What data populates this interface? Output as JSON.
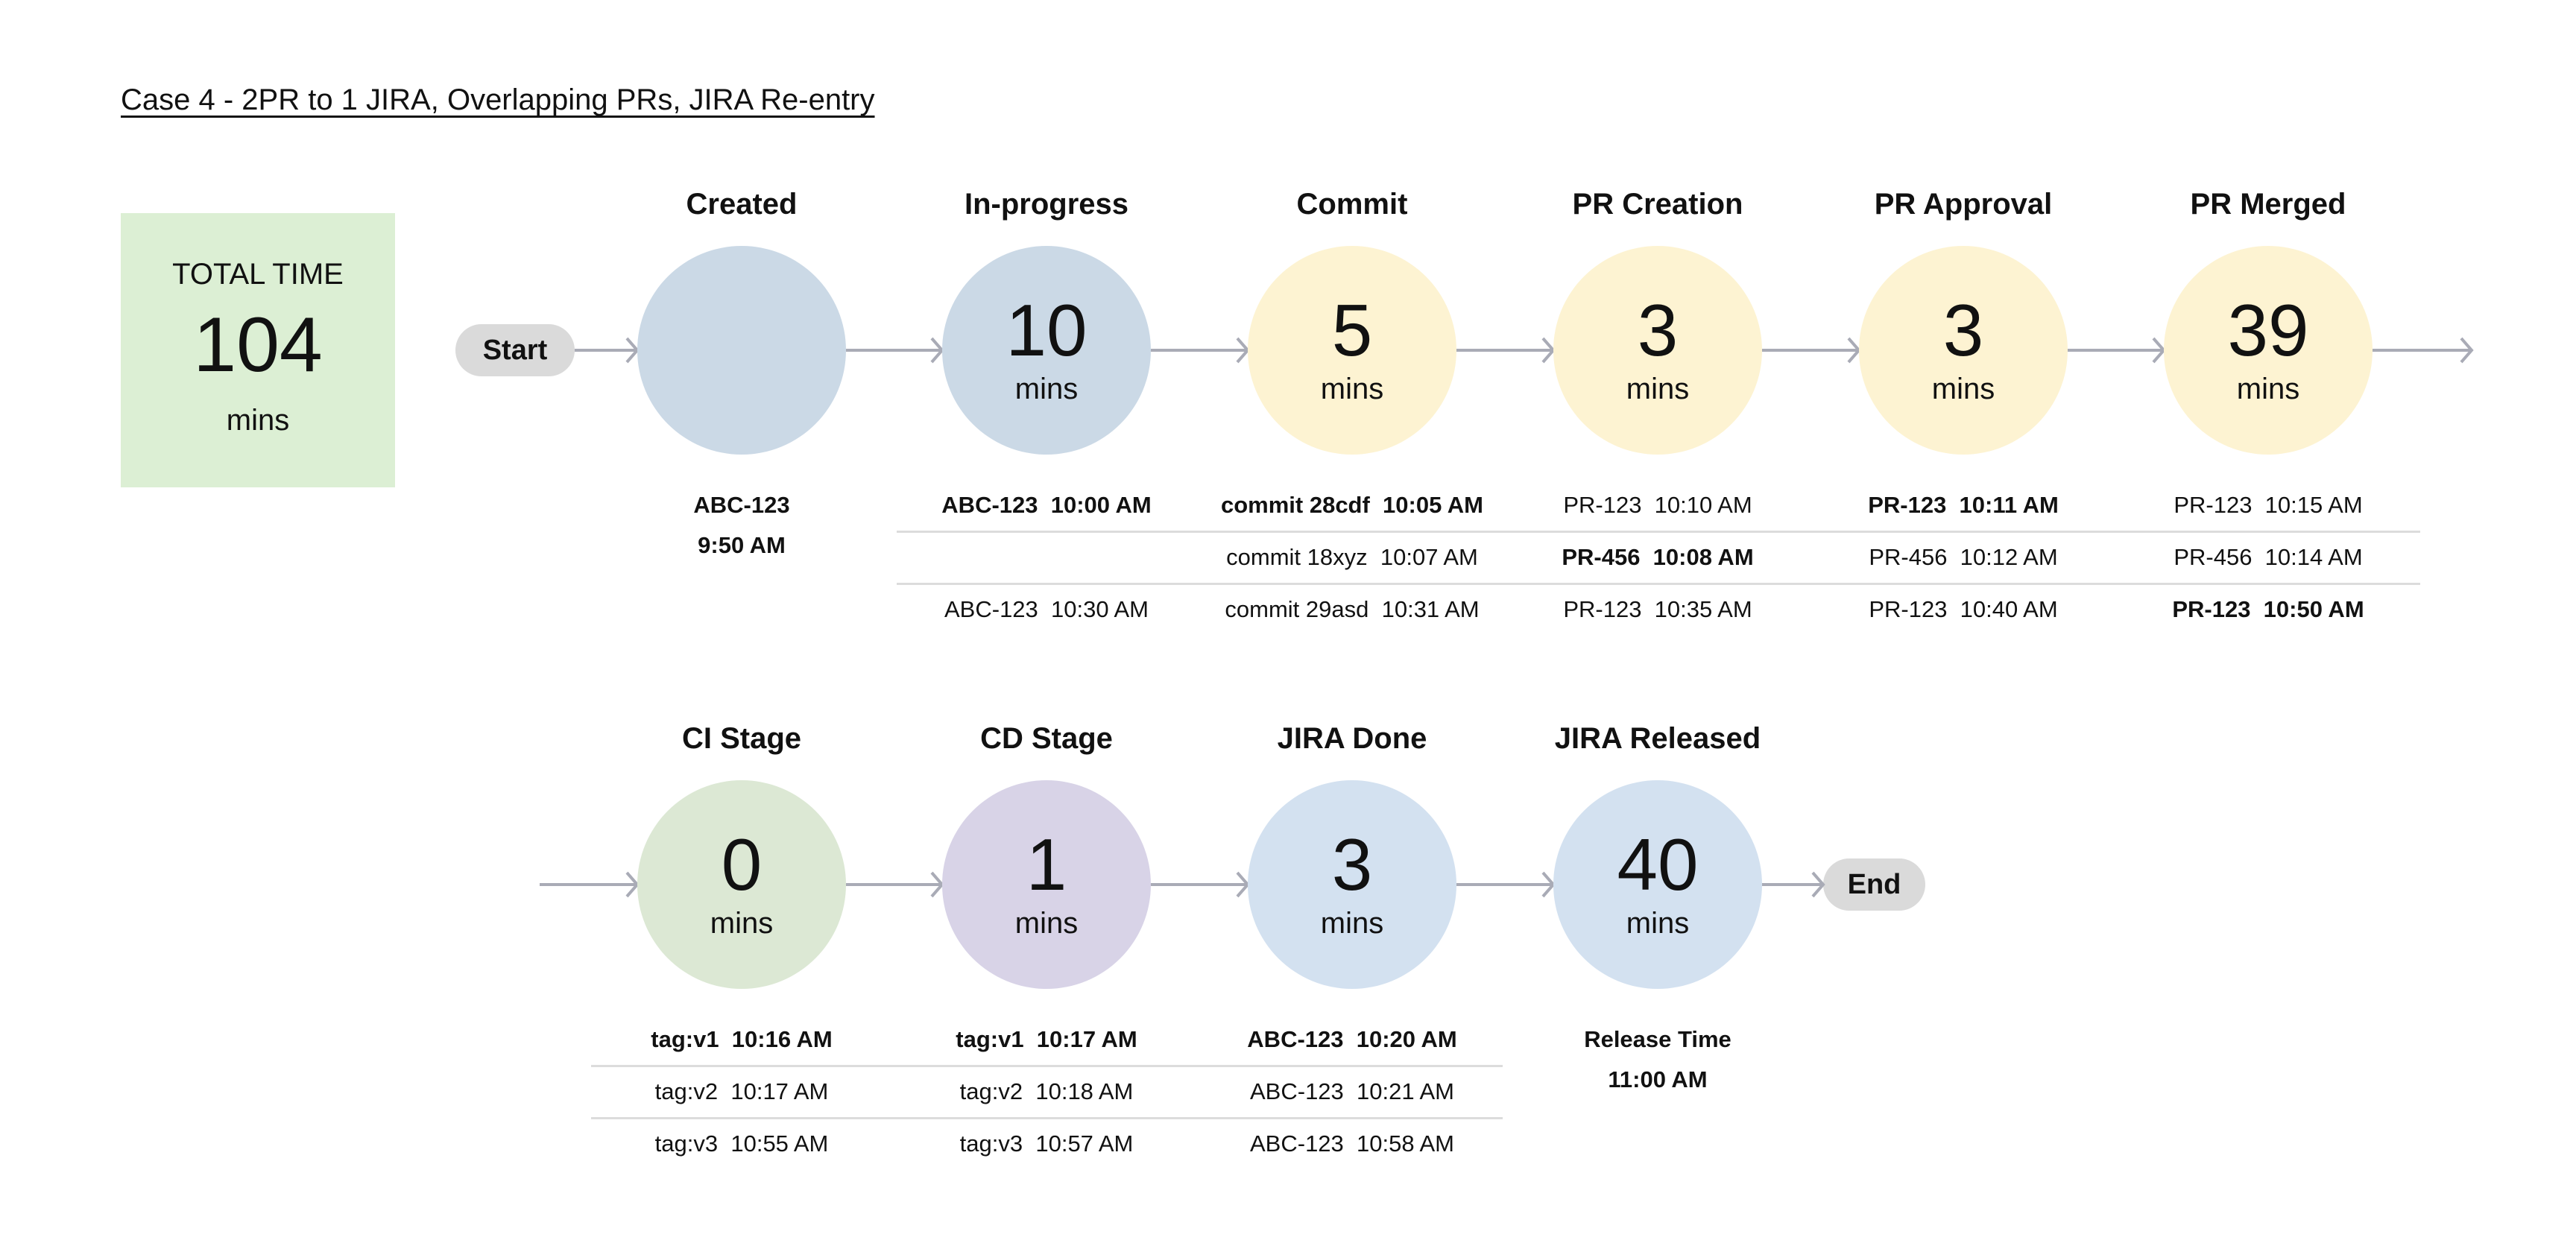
{
  "title": "Case 4 - 2PR to 1 JIRA, Overlapping PRs, JIRA Re-entry",
  "total": {
    "label": "TOTAL TIME",
    "value": "104",
    "unit": "mins",
    "color": "#dcefd4"
  },
  "start_label": "Start",
  "end_label": "End",
  "arrow_color": "#a9abb6",
  "rows": [
    {
      "stages": [
        {
          "name": "Created",
          "value": "",
          "unit": "",
          "color": "#cbd9e6",
          "lines": [
            {
              "text": "ABC-123",
              "bold": true
            },
            {
              "text": "9:50 AM",
              "bold": true
            }
          ]
        },
        {
          "name": "In-progress",
          "value": "10",
          "unit": "mins",
          "color": "#cbd9e6",
          "entries": [
            {
              "text": "ABC-123  10:00 AM",
              "bold": true
            },
            {
              "text": "",
              "bold": false
            },
            {
              "text": "ABC-123  10:30 AM",
              "bold": false
            }
          ]
        },
        {
          "name": "Commit",
          "value": "5",
          "unit": "mins",
          "color": "#fdf3d2",
          "entries": [
            {
              "text": "commit 28cdf  10:05 AM",
              "bold": true
            },
            {
              "text": "commit 18xyz  10:07 AM",
              "bold": false
            },
            {
              "text": "commit 29asd  10:31 AM",
              "bold": false
            }
          ]
        },
        {
          "name": "PR Creation",
          "value": "3",
          "unit": "mins",
          "color": "#fdf3d2",
          "entries": [
            {
              "text": "PR-123  10:10 AM",
              "bold": false
            },
            {
              "text": "PR-456  10:08 AM",
              "bold": true
            },
            {
              "text": "PR-123  10:35 AM",
              "bold": false
            }
          ]
        },
        {
          "name": "PR Approval",
          "value": "3",
          "unit": "mins",
          "color": "#fdf3d2",
          "entries": [
            {
              "text": "PR-123  10:11 AM",
              "bold": true
            },
            {
              "text": "PR-456  10:12 AM",
              "bold": false
            },
            {
              "text": "PR-123  10:40 AM",
              "bold": false
            }
          ]
        },
        {
          "name": "PR Merged",
          "value": "39",
          "unit": "mins",
          "color": "#fdf3d2",
          "entries": [
            {
              "text": "PR-123  10:15 AM",
              "bold": false
            },
            {
              "text": "PR-456  10:14 AM",
              "bold": false
            },
            {
              "text": "PR-123  10:50 AM",
              "bold": true
            }
          ]
        }
      ]
    },
    {
      "stages": [
        {
          "name": "CI Stage",
          "value": "0",
          "unit": "mins",
          "color": "#dce8d4",
          "entries": [
            {
              "text": "tag:v1  10:16 AM",
              "bold": true
            },
            {
              "text": "tag:v2  10:17 AM",
              "bold": false
            },
            {
              "text": "tag:v3  10:55 AM",
              "bold": false
            }
          ]
        },
        {
          "name": "CD Stage",
          "value": "1",
          "unit": "mins",
          "color": "#d8d3e7",
          "entries": [
            {
              "text": "tag:v1  10:17 AM",
              "bold": true
            },
            {
              "text": "tag:v2  10:18 AM",
              "bold": false
            },
            {
              "text": "tag:v3  10:57 AM",
              "bold": false
            }
          ]
        },
        {
          "name": "JIRA Done",
          "value": "3",
          "unit": "mins",
          "color": "#d3e1f0",
          "entries": [
            {
              "text": "ABC-123  10:20 AM",
              "bold": true
            },
            {
              "text": "ABC-123  10:21 AM",
              "bold": false
            },
            {
              "text": "ABC-123  10:58 AM",
              "bold": false
            }
          ]
        },
        {
          "name": "JIRA Released",
          "value": "40",
          "unit": "mins",
          "color": "#d3e1f0",
          "lines": [
            {
              "text": "Release Time",
              "bold": true
            },
            {
              "text": "11:00 AM",
              "bold": true
            }
          ]
        }
      ]
    }
  ]
}
